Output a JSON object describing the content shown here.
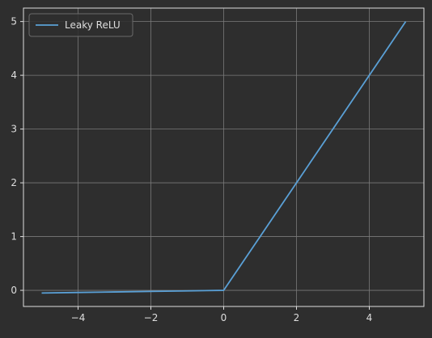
{
  "colors": {
    "background": "#2e2e2e",
    "axes_edge": "#dedede",
    "grid": "#7a7a7a",
    "text": "#dedede",
    "series": "#5aa0d6",
    "legend_bg": "#2e2e2e",
    "legend_edge": "#6a6a6a"
  },
  "chart_data": {
    "type": "line",
    "title": "",
    "xlabel": "",
    "ylabel": "",
    "xlim": [
      -5.5,
      5.5
    ],
    "ylim": [
      -0.3,
      5.25
    ],
    "xticks": [
      -4,
      -2,
      0,
      2,
      4
    ],
    "xtick_labels": [
      "−4",
      "−2",
      "0",
      "2",
      "4"
    ],
    "yticks": [
      0,
      1,
      2,
      3,
      4,
      5
    ],
    "ytick_labels": [
      "0",
      "1",
      "2",
      "3",
      "4",
      "5"
    ],
    "grid": true,
    "legend": {
      "position": "top-left"
    },
    "series": [
      {
        "name": "Leaky ReLU",
        "x": [
          -5,
          -4,
          -3,
          -2,
          -1,
          0,
          1,
          2,
          3,
          4,
          5
        ],
        "y": [
          -0.05,
          -0.04,
          -0.03,
          -0.02,
          -0.01,
          0,
          1,
          2,
          3,
          4,
          5
        ]
      }
    ]
  }
}
